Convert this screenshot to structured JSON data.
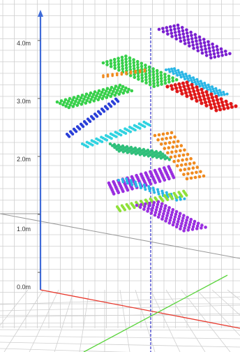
{
  "axis_ticks": [
    "4.0m",
    "3.0m",
    "2.0m",
    "1.0m",
    "0.0m"
  ],
  "colors": {
    "background": "#ffffff",
    "grid": "#cfcfcf",
    "grid_major": "#9a9a9a",
    "axis_y": "#3f6bd8",
    "axis_x": "#e8372b",
    "axis_z": "#5ad43c",
    "vertical_line": "#3030c8"
  },
  "point_layers": [
    {
      "color": "#7a1fd0"
    },
    {
      "color": "#37d04a"
    },
    {
      "color": "#f08a1e"
    },
    {
      "color": "#2ab6e6"
    },
    {
      "color": "#e01818"
    },
    {
      "color": "#37d04a"
    },
    {
      "color": "#2a3fd8"
    },
    {
      "color": "#2fd2e0"
    },
    {
      "color": "#f08a1e"
    },
    {
      "color": "#2fbf7a"
    },
    {
      "color": "#9a2fe0"
    },
    {
      "color": "#2ab6e6"
    },
    {
      "color": "#8fe03a"
    },
    {
      "color": "#9a2fe0"
    }
  ]
}
